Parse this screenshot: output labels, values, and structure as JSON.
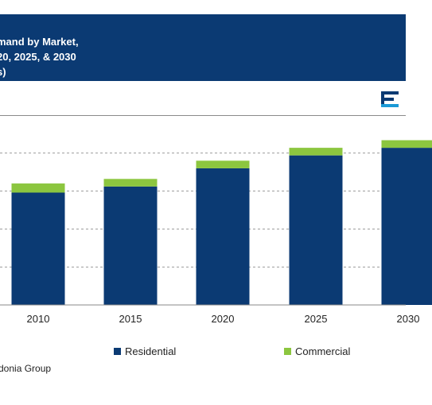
{
  "header": {
    "lines": [
      "mand by Market,",
      "20, 2025, & 2030",
      "s)"
    ]
  },
  "footer": {
    "source": "donia Group"
  },
  "colors": {
    "header_bg": "#0b3a73",
    "residential": "#0b3a73",
    "commercial": "#8cc63f"
  },
  "icons": [
    "logo-icon"
  ],
  "chart_data": {
    "type": "bar",
    "stacked": true,
    "categories": [
      "2010",
      "2015",
      "2020",
      "2025",
      "2030"
    ],
    "series": [
      {
        "name": "Residential",
        "values": [
          148,
          156,
          180,
          197,
          207
        ]
      },
      {
        "name": "Commercial",
        "values": [
          12,
          10,
          10,
          10,
          10
        ]
      }
    ],
    "ylim": [
      0,
      250
    ],
    "grid": true,
    "legend_position": "bottom"
  }
}
